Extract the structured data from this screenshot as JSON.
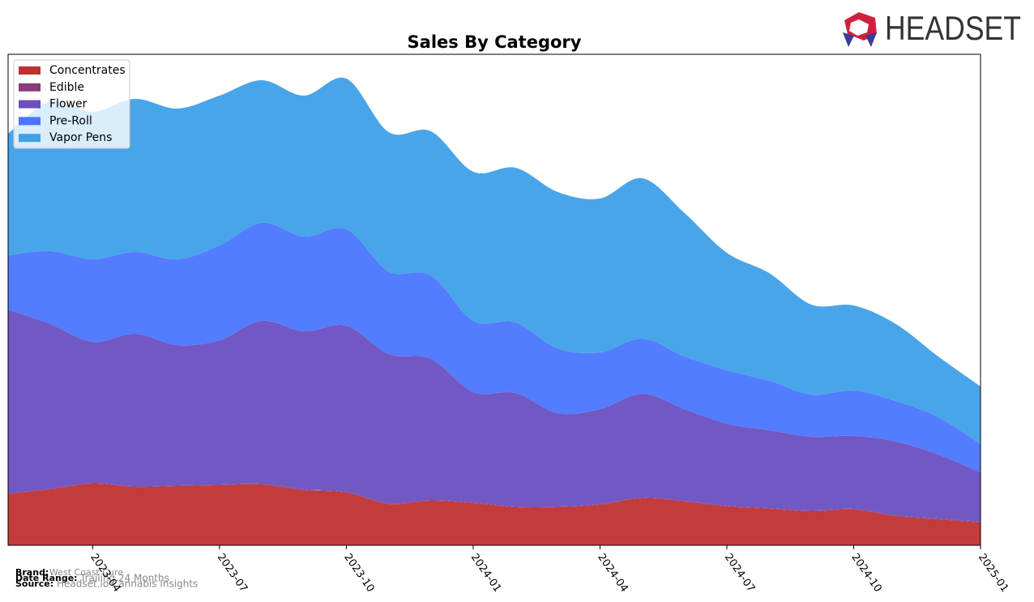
{
  "chart_data": {
    "type": "stacked_area",
    "title": "Sales By Category",
    "x": [
      "2023-02",
      "2023-03",
      "2023-04",
      "2023-05",
      "2023-06",
      "2023-07",
      "2023-08",
      "2023-09",
      "2023-10",
      "2023-11",
      "2023-12",
      "2024-01",
      "2024-02",
      "2024-03",
      "2024-04",
      "2024-05",
      "2024-06",
      "2024-07",
      "2024-08",
      "2024-09",
      "2024-10",
      "2024-11",
      "2024-12",
      "2025-01"
    ],
    "xticks": [
      "2023-04",
      "2023-07",
      "2023-10",
      "2024-01",
      "2024-04",
      "2024-07",
      "2024-10",
      "2025-01"
    ],
    "ylim": [
      0,
      606
    ],
    "legend": "upper left",
    "series": [
      {
        "name": "Concentrates",
        "color": "#c03030",
        "values": [
          63,
          69,
          76,
          72,
          73,
          74,
          75,
          68,
          65,
          51,
          55,
          52,
          47,
          47,
          50,
          58,
          54,
          48,
          45,
          42,
          44,
          36,
          32,
          28
        ]
      },
      {
        "name": "Edible",
        "color": "#8b3a7a",
        "values": [
          1,
          1,
          1,
          1,
          1,
          1,
          1,
          1,
          1,
          1,
          1,
          1,
          1,
          1,
          1,
          1,
          1,
          1,
          1,
          1,
          1,
          1,
          1,
          1
        ]
      },
      {
        "name": "Flower",
        "color": "#6a4fbf",
        "values": [
          227,
          203,
          174,
          188,
          173,
          178,
          201,
          195,
          205,
          184,
          174,
          136,
          140,
          115,
          117,
          128,
          113,
          101,
          96,
          91,
          90,
          91,
          79,
          61
        ]
      },
      {
        "name": "Pre-Roll",
        "color": "#4a75ff",
        "values": [
          67,
          90,
          102,
          101,
          106,
          117,
          121,
          117,
          119,
          102,
          103,
          88,
          87,
          80,
          70,
          68,
          65,
          66,
          61,
          52,
          56,
          50,
          46,
          35
        ]
      },
      {
        "name": "Vapor Pens",
        "color": "#3fa0e8",
        "values": [
          150,
          185,
          182,
          189,
          186,
          185,
          176,
          174,
          186,
          172,
          178,
          184,
          191,
          193,
          190,
          198,
          177,
          145,
          133,
          111,
          105,
          95,
          75,
          71
        ]
      }
    ]
  },
  "footer": {
    "brand_label": "Brand:",
    "brand": "West Coast Cure",
    "date_label": "Date Range:",
    "date": "Trailing 24 Months",
    "source_label": "Source:",
    "source": "Headset.io Cannabis Insights"
  },
  "logo": "HEADSET"
}
